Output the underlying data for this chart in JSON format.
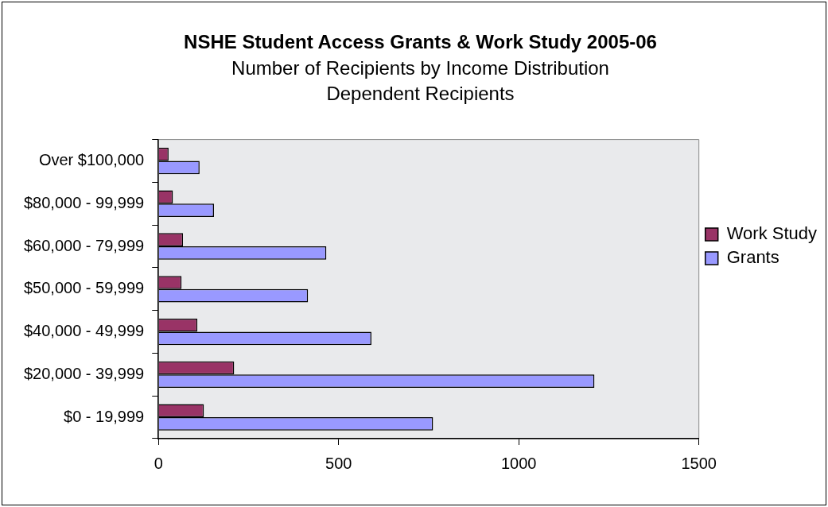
{
  "chart_data": {
    "type": "bar",
    "orientation": "horizontal",
    "title": "NSHE Student Access Grants & Work Study 2005-06",
    "subtitle": "Number of Recipients by Income Distribution\nDependent Recipients",
    "categories": [
      "Over $100,000",
      "$80,000 - 99,999",
      "$60,000 - 79,999",
      "$50,000 - 59,999",
      "$40,000 - 49,999",
      "$20,000 - 39,999",
      "$0 - 19,999"
    ],
    "series": [
      {
        "name": "Work Study",
        "color": "#993366",
        "values": [
          28,
          40,
          68,
          64,
          108,
          210,
          126
        ]
      },
      {
        "name": "Grants",
        "color": "#9999ff",
        "values": [
          114,
          154,
          466,
          415,
          591,
          1210,
          762
        ]
      }
    ],
    "xlim": [
      0,
      1500
    ],
    "xticks": [
      0,
      500,
      1000,
      1500
    ],
    "grid": false,
    "legend": "right"
  }
}
